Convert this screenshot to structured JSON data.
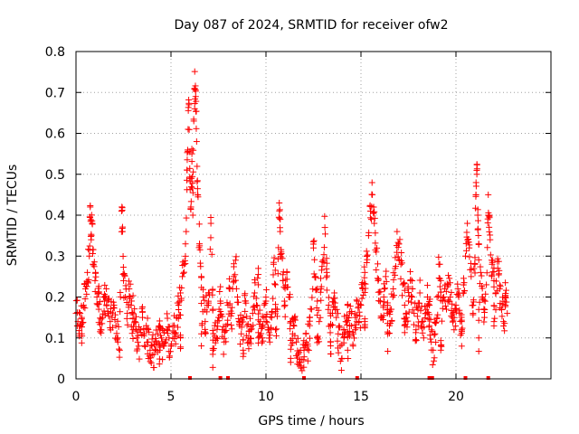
{
  "chart_data": {
    "type": "scatter",
    "title": "Day 087 of 2024, SRMTID for receiver ofw2",
    "xlabel": "GPS time / hours",
    "ylabel": "SRMTID / TECUs",
    "xlim": [
      0,
      25
    ],
    "ylim": [
      0,
      0.8
    ],
    "xticks": [
      0,
      5,
      10,
      15,
      20
    ],
    "xtick_labels": [
      "0",
      "5",
      "10",
      "15",
      "20"
    ],
    "yticks": [
      0,
      0.1,
      0.2,
      0.3,
      0.4,
      0.5,
      0.6,
      0.7,
      0.8
    ],
    "ytick_labels": [
      "0",
      "0.1",
      "0.2",
      "0.3",
      "0.4",
      "0.5",
      "0.6",
      "0.7",
      "0.8"
    ],
    "grid": true,
    "marker": "+",
    "color": "#ff0000",
    "series": [
      {
        "name": "SRMTID",
        "points": [
          [
            0.0,
            0.16
          ],
          [
            0.1,
            0.14
          ],
          [
            0.2,
            0.13
          ],
          [
            0.3,
            0.15
          ],
          [
            0.4,
            0.18
          ],
          [
            0.5,
            0.22
          ],
          [
            0.6,
            0.26
          ],
          [
            0.7,
            0.3
          ],
          [
            0.8,
            0.34
          ],
          [
            0.9,
            0.28
          ],
          [
            0.75,
            0.42
          ],
          [
            0.85,
            0.38
          ],
          [
            1.0,
            0.24
          ],
          [
            1.1,
            0.2
          ],
          [
            1.2,
            0.17
          ],
          [
            1.3,
            0.12
          ],
          [
            1.4,
            0.15
          ],
          [
            1.5,
            0.19
          ],
          [
            1.6,
            0.22
          ],
          [
            1.7,
            0.16
          ],
          [
            1.8,
            0.14
          ],
          [
            1.9,
            0.15
          ],
          [
            2.0,
            0.18
          ],
          [
            2.1,
            0.13
          ],
          [
            2.2,
            0.1
          ],
          [
            2.3,
            0.07
          ],
          [
            2.4,
            0.41
          ],
          [
            2.45,
            0.36
          ],
          [
            2.5,
            0.24
          ],
          [
            2.6,
            0.2
          ],
          [
            2.7,
            0.16
          ],
          [
            2.8,
            0.22
          ],
          [
            2.9,
            0.18
          ],
          [
            3.0,
            0.12
          ],
          [
            3.1,
            0.14
          ],
          [
            3.2,
            0.1
          ],
          [
            3.3,
            0.08
          ],
          [
            3.4,
            0.12
          ],
          [
            3.5,
            0.15
          ],
          [
            3.6,
            0.11
          ],
          [
            3.7,
            0.13
          ],
          [
            3.8,
            0.09
          ],
          [
            3.9,
            0.07
          ],
          [
            4.0,
            0.08
          ],
          [
            4.1,
            0.06
          ],
          [
            4.2,
            0.09
          ],
          [
            4.3,
            0.11
          ],
          [
            4.4,
            0.07
          ],
          [
            4.5,
            0.1
          ],
          [
            4.6,
            0.08
          ],
          [
            4.7,
            0.09
          ],
          [
            4.8,
            0.12
          ],
          [
            4.9,
            0.1
          ],
          [
            5.0,
            0.08
          ],
          [
            5.1,
            0.13
          ],
          [
            5.2,
            0.11
          ],
          [
            5.3,
            0.15
          ],
          [
            5.4,
            0.18
          ],
          [
            5.5,
            0.21
          ],
          [
            5.6,
            0.25
          ],
          [
            5.7,
            0.28
          ],
          [
            5.8,
            0.36
          ],
          [
            5.85,
            0.51
          ],
          [
            5.9,
            0.61
          ],
          [
            5.95,
            0.67
          ],
          [
            6.0,
            0.49
          ],
          [
            6.05,
            0.42
          ],
          [
            6.1,
            0.55
          ],
          [
            6.15,
            0.4
          ],
          [
            6.2,
            0.63
          ],
          [
            6.25,
            0.71
          ],
          [
            6.3,
            0.69
          ],
          [
            6.35,
            0.58
          ],
          [
            6.4,
            0.45
          ],
          [
            6.5,
            0.33
          ],
          [
            6.6,
            0.25
          ],
          [
            6.7,
            0.2
          ],
          [
            6.8,
            0.14
          ],
          [
            6.9,
            0.18
          ],
          [
            7.0,
            0.21
          ],
          [
            7.1,
            0.38
          ],
          [
            7.2,
            0.17
          ],
          [
            7.3,
            0.13
          ],
          [
            7.4,
            0.1
          ],
          [
            7.5,
            0.15
          ],
          [
            7.6,
            0.19
          ],
          [
            7.7,
            0.12
          ],
          [
            7.8,
            0.09
          ],
          [
            7.9,
            0.13
          ],
          [
            8.0,
            0.18
          ],
          [
            8.1,
            0.22
          ],
          [
            8.2,
            0.16
          ],
          [
            8.3,
            0.25
          ],
          [
            8.4,
            0.29
          ],
          [
            8.5,
            0.2
          ],
          [
            8.6,
            0.14
          ],
          [
            8.7,
            0.11
          ],
          [
            8.8,
            0.15
          ],
          [
            8.9,
            0.19
          ],
          [
            9.0,
            0.13
          ],
          [
            9.1,
            0.09
          ],
          [
            9.2,
            0.12
          ],
          [
            9.3,
            0.16
          ],
          [
            9.4,
            0.21
          ],
          [
            9.5,
            0.18
          ],
          [
            9.6,
            0.23
          ],
          [
            9.7,
            0.14
          ],
          [
            9.8,
            0.1
          ],
          [
            9.9,
            0.15
          ],
          [
            10.0,
            0.19
          ],
          [
            10.1,
            0.12
          ],
          [
            10.2,
            0.09
          ],
          [
            10.3,
            0.15
          ],
          [
            10.4,
            0.28
          ],
          [
            10.5,
            0.23
          ],
          [
            10.6,
            0.17
          ],
          [
            10.7,
            0.43
          ],
          [
            10.75,
            0.36
          ],
          [
            10.8,
            0.31
          ],
          [
            10.9,
            0.24
          ],
          [
            11.0,
            0.18
          ],
          [
            11.1,
            0.26
          ],
          [
            11.2,
            0.2
          ],
          [
            11.3,
            0.14
          ],
          [
            11.4,
            0.11
          ],
          [
            11.5,
            0.15
          ],
          [
            11.6,
            0.09
          ],
          [
            11.7,
            0.06
          ],
          [
            11.8,
            0.04
          ],
          [
            11.9,
            0.02
          ],
          [
            12.0,
            0.07
          ],
          [
            12.1,
            0.11
          ],
          [
            12.2,
            0.08
          ],
          [
            12.3,
            0.13
          ],
          [
            12.4,
            0.17
          ],
          [
            12.5,
            0.32
          ],
          [
            12.6,
            0.25
          ],
          [
            12.7,
            0.19
          ],
          [
            12.8,
            0.14
          ],
          [
            12.9,
            0.22
          ],
          [
            13.0,
            0.29
          ],
          [
            13.1,
            0.37
          ],
          [
            13.2,
            0.26
          ],
          [
            13.3,
            0.18
          ],
          [
            13.4,
            0.13
          ],
          [
            13.5,
            0.16
          ],
          [
            13.6,
            0.21
          ],
          [
            13.7,
            0.15
          ],
          [
            13.8,
            0.11
          ],
          [
            13.9,
            0.08
          ],
          [
            14.0,
            0.05
          ],
          [
            14.1,
            0.1
          ],
          [
            14.2,
            0.14
          ],
          [
            14.3,
            0.18
          ],
          [
            14.4,
            0.13
          ],
          [
            14.5,
            0.16
          ],
          [
            14.6,
            0.11
          ],
          [
            14.7,
            0.15
          ],
          [
            14.8,
            0.19
          ],
          [
            14.9,
            0.14
          ],
          [
            15.0,
            0.18
          ],
          [
            15.1,
            0.22
          ],
          [
            15.2,
            0.26
          ],
          [
            15.3,
            0.3
          ],
          [
            15.4,
            0.35
          ],
          [
            15.5,
            0.41
          ],
          [
            15.6,
            0.45
          ],
          [
            15.7,
            0.38
          ],
          [
            15.8,
            0.31
          ],
          [
            15.9,
            0.24
          ],
          [
            16.0,
            0.19
          ],
          [
            16.1,
            0.15
          ],
          [
            16.2,
            0.2
          ],
          [
            16.3,
            0.25
          ],
          [
            16.4,
            0.18
          ],
          [
            16.5,
            0.13
          ],
          [
            16.6,
            0.17
          ],
          [
            16.7,
            0.22
          ],
          [
            16.8,
            0.27
          ],
          [
            16.9,
            0.36
          ],
          [
            17.0,
            0.33
          ],
          [
            17.1,
            0.28
          ],
          [
            17.2,
            0.23
          ],
          [
            17.3,
            0.18
          ],
          [
            17.4,
            0.15
          ],
          [
            17.5,
            0.19
          ],
          [
            17.6,
            0.24
          ],
          [
            17.7,
            0.2
          ],
          [
            17.8,
            0.16
          ],
          [
            17.9,
            0.12
          ],
          [
            18.0,
            0.17
          ],
          [
            18.1,
            0.21
          ],
          [
            18.2,
            0.14
          ],
          [
            18.3,
            0.1
          ],
          [
            18.4,
            0.16
          ],
          [
            18.5,
            0.2
          ],
          [
            18.6,
            0.13
          ],
          [
            18.7,
            0.09
          ],
          [
            18.8,
            0.07
          ],
          [
            18.9,
            0.11
          ],
          [
            19.0,
            0.15
          ],
          [
            19.1,
            0.28
          ],
          [
            19.2,
            0.24
          ],
          [
            19.3,
            0.19
          ],
          [
            19.4,
            0.22
          ],
          [
            19.5,
            0.17
          ],
          [
            19.6,
            0.23
          ],
          [
            19.7,
            0.2
          ],
          [
            19.8,
            0.15
          ],
          [
            19.9,
            0.12
          ],
          [
            20.0,
            0.18
          ],
          [
            20.1,
            0.22
          ],
          [
            20.2,
            0.16
          ],
          [
            20.3,
            0.12
          ],
          [
            20.4,
            0.21
          ],
          [
            20.5,
            0.3
          ],
          [
            20.6,
            0.38
          ],
          [
            20.7,
            0.32
          ],
          [
            20.8,
            0.25
          ],
          [
            20.9,
            0.18
          ],
          [
            21.0,
            0.28
          ],
          [
            21.05,
            0.45
          ],
          [
            21.1,
            0.5
          ],
          [
            21.15,
            0.4
          ],
          [
            21.2,
            0.33
          ],
          [
            21.3,
            0.26
          ],
          [
            21.4,
            0.2
          ],
          [
            21.5,
            0.15
          ],
          [
            21.6,
            0.23
          ],
          [
            21.7,
            0.45
          ],
          [
            21.75,
            0.4
          ],
          [
            21.8,
            0.34
          ],
          [
            21.9,
            0.28
          ],
          [
            22.0,
            0.24
          ],
          [
            22.1,
            0.21
          ],
          [
            22.2,
            0.27
          ],
          [
            22.3,
            0.22
          ],
          [
            22.4,
            0.17
          ],
          [
            22.5,
            0.14
          ],
          [
            22.6,
            0.18
          ],
          [
            22.7,
            0.16
          ],
          [
            0.3,
            0.11
          ],
          [
            1.2,
            0.21
          ],
          [
            3.0,
            0.16
          ],
          [
            4.4,
            0.12
          ],
          [
            5.5,
            0.1
          ],
          [
            6.6,
            0.11
          ],
          [
            7.2,
            0.06
          ],
          [
            8.8,
            0.07
          ],
          [
            9.6,
            0.1
          ],
          [
            10.5,
            0.12
          ],
          [
            11.3,
            0.05
          ],
          [
            12.7,
            0.1
          ],
          [
            13.4,
            0.09
          ],
          [
            14.3,
            0.07
          ],
          [
            15.2,
            0.14
          ],
          [
            16.4,
            0.11
          ],
          [
            17.3,
            0.13
          ],
          [
            18.6,
            0.18
          ],
          [
            19.2,
            0.07
          ],
          [
            20.3,
            0.08
          ],
          [
            21.2,
            0.1
          ],
          [
            22.0,
            0.14
          ],
          [
            22.6,
            0.2
          ]
        ]
      }
    ],
    "zero_points_x": [
      6.0,
      7.6,
      8.0,
      12.0,
      14.8,
      18.6,
      18.75,
      20.5,
      21.7
    ]
  }
}
